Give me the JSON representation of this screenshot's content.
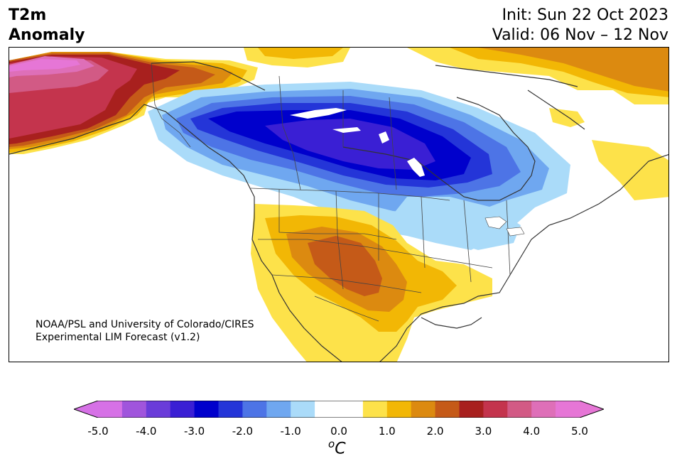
{
  "header": {
    "title_line1": "T2m",
    "title_line2": "Anomaly",
    "init_text": "Init: Sun 22 Oct 2023",
    "valid_text": "Valid: 06 Nov – 12 Nov"
  },
  "credit": {
    "line1": "NOAA/PSL and University of Colorado/CIRES",
    "line2": "Experimental LIM Forecast (v1.2)"
  },
  "colorbar": {
    "colors": [
      "#d671e6",
      "#a055dc",
      "#6a3cd9",
      "#3a1fd4",
      "#0000cc",
      "#2435d8",
      "#4d74e6",
      "#6fa7f0",
      "#aadbf9",
      "#ffffff",
      "#ffffff",
      "#fde24a",
      "#f2b705",
      "#dc8a10",
      "#c55a18",
      "#a8201e",
      "#c4344d",
      "#d25a85",
      "#de6fb8",
      "#e676d6"
    ],
    "under_color": "#d671e6",
    "over_color": "#e676d6",
    "ticks": [
      "-5.0",
      "-4.0",
      "-3.0",
      "-2.0",
      "-1.0",
      "0.0",
      "1.0",
      "2.0",
      "3.0",
      "4.0",
      "5.0"
    ],
    "unit_label": "oC"
  }
}
